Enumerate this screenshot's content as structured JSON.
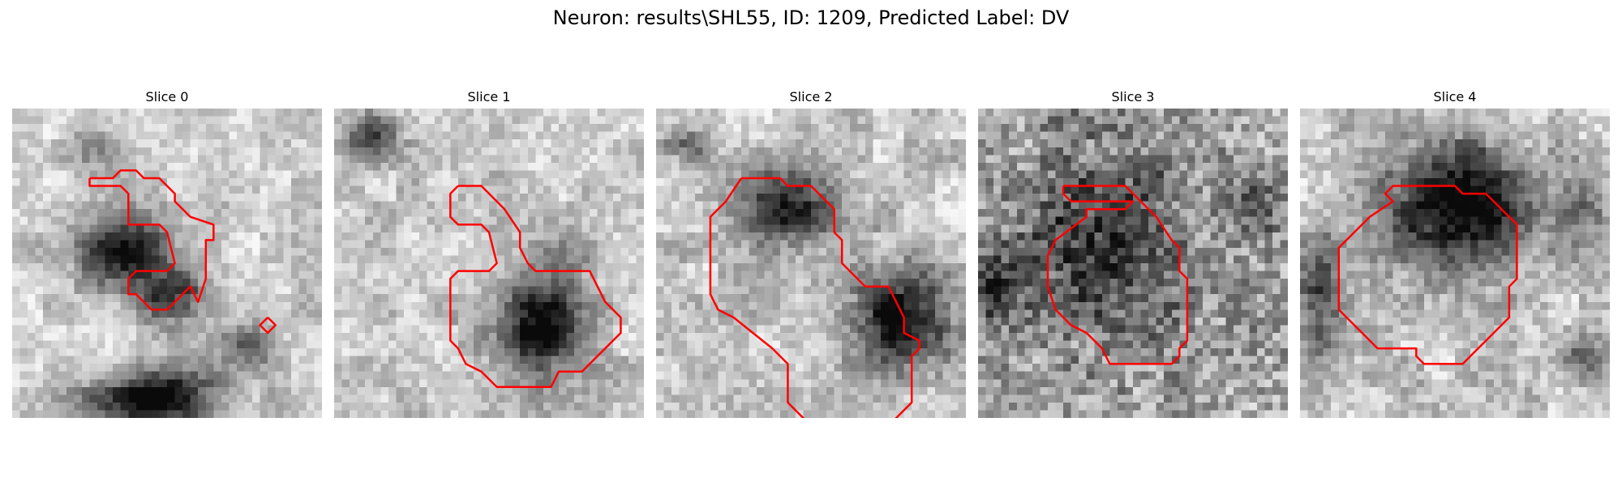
{
  "figure": {
    "title": "Neuron: results\\SHL55, ID: 1209, Predicted Label: DV"
  },
  "panels": [
    {
      "title": "Slice 0"
    },
    {
      "title": "Slice 1"
    },
    {
      "title": "Slice 2"
    },
    {
      "title": "Slice 3"
    },
    {
      "title": "Slice 4"
    }
  ],
  "colors": {
    "contour": "#ff0000",
    "background": "#ffffff"
  }
}
